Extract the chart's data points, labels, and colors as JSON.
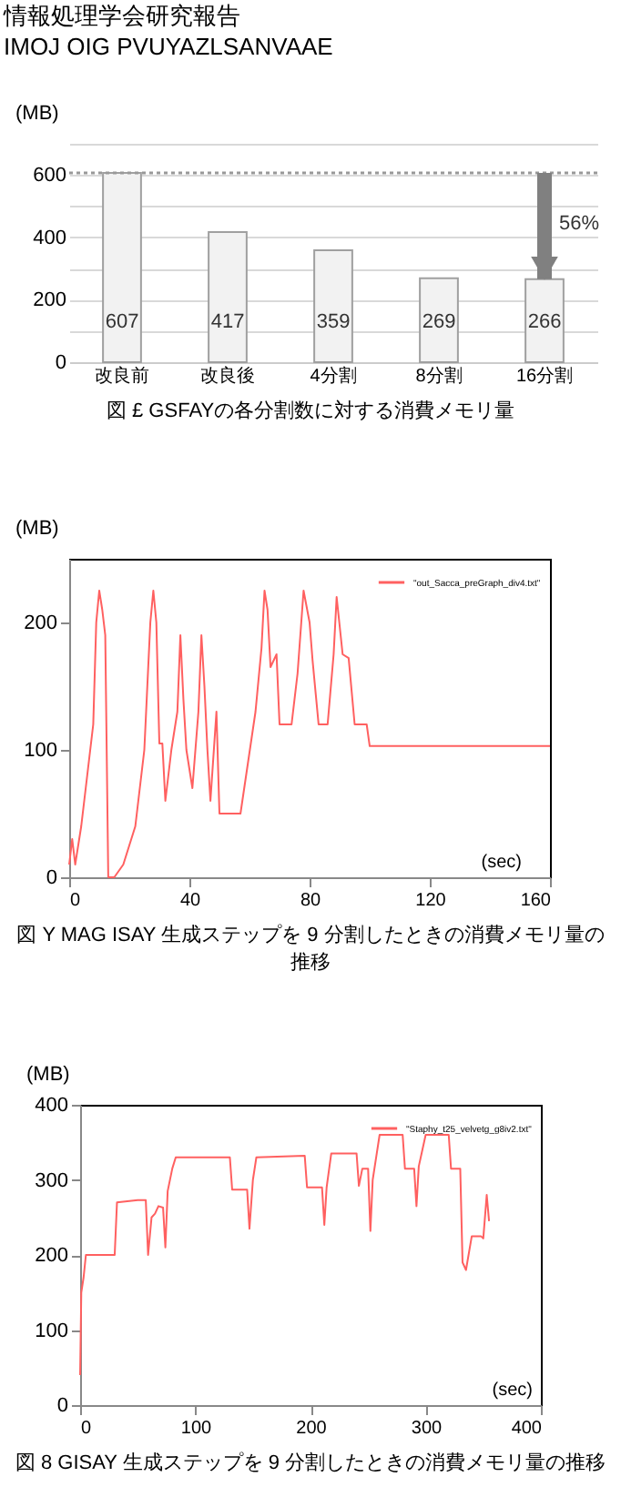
{
  "chart_data": [
    {
      "type": "bar",
      "title": "図 £ GSFAYの各分割数に対する消費メモリ量",
      "ylabel": "(MB)",
      "annotations": [
        "情報処理学会研究報告",
        "IMOJ OIG PVUYAZLSANVAAE",
        "56%"
      ],
      "categories": [
        "改良前",
        "改良後",
        "4分割",
        "8分割",
        "16分割"
      ],
      "values": [
        607,
        417,
        359,
        269,
        266
      ],
      "color": "#f2f2f2",
      "ylim": [
        0,
        700
      ],
      "yticks": [
        0,
        {
          "value": 100,
          "label": null
        },
        200,
        {
          "value": 300,
          "label": null
        },
        400,
        {
          "value": 500,
          "label": null
        },
        600,
        {
          "value": 700,
          "label": null
        }
      ],
      "grid": "y",
      "data_labels": true,
      "ref_lines": [
        {
          "axis": "y",
          "value": 607,
          "line_style": "dotted",
          "color": "#999999"
        }
      ]
    },
    {
      "type": "line",
      "title": "図 Y MAG ISAY 生成ステップを 9 分割したときの消費メモリ量の推移",
      "xlabel": "(sec)",
      "ylabel": "(MB)",
      "legend": "top right",
      "xlim": [
        0,
        160
      ],
      "xticks": [
        0,
        40,
        80,
        120,
        160
      ],
      "ylim": [
        0,
        250
      ],
      "yticks": [
        0,
        100,
        200
      ],
      "series": [
        {
          "name": "\"out_Sacca_preGraph_div4.txt\"",
          "color": "#ff6060",
          "x": [
            0,
            1,
            2,
            4,
            6,
            8,
            9,
            10,
            11,
            12,
            13,
            15,
            18,
            22,
            25,
            27,
            28,
            29,
            30,
            31,
            32,
            34,
            36,
            37,
            38,
            39,
            41,
            43,
            44,
            45,
            46,
            47,
            49,
            50,
            57,
            62,
            64,
            65,
            66,
            67,
            69,
            70,
            74,
            76,
            78,
            80,
            81,
            83,
            86,
            88,
            89,
            91,
            93,
            95,
            99,
            100,
            160
          ],
          "values": [
            10,
            30,
            10,
            40,
            80,
            120,
            200,
            225,
            210,
            190,
            0,
            0,
            10,
            40,
            100,
            200,
            225,
            200,
            105,
            105,
            60,
            100,
            130,
            190,
            140,
            100,
            70,
            130,
            190,
            150,
            100,
            60,
            130,
            50,
            50,
            130,
            180,
            225,
            210,
            165,
            175,
            120,
            120,
            160,
            225,
            200,
            170,
            120,
            120,
            175,
            220,
            175,
            172,
            120,
            120,
            103,
            103
          ]
        }
      ]
    },
    {
      "type": "line",
      "title": "図 8 GISAY 生成ステップを 9 分割したときの消費メモリ量の推移",
      "xlabel": "(sec)",
      "ylabel": "(MB)",
      "legend": "top right",
      "xlim": [
        0,
        400
      ],
      "xticks": [
        0,
        100,
        200,
        300,
        400
      ],
      "ylim": [
        0,
        400
      ],
      "yticks": [
        0,
        100,
        200,
        300,
        400
      ],
      "series": [
        {
          "name": "\"Staphy_t25_velvetg_g8iv2.txt\"",
          "color": "#ff6060",
          "x": [
            0,
            1,
            3,
            5,
            30,
            32,
            50,
            57,
            59,
            62,
            65,
            68,
            72,
            74,
            76,
            80,
            83,
            130,
            132,
            145,
            147,
            150,
            153,
            195,
            197,
            210,
            212,
            214,
            218,
            240,
            242,
            245,
            250,
            252,
            254,
            260,
            280,
            282,
            290,
            292,
            294,
            300,
            320,
            322,
            330,
            332,
            335,
            340,
            348,
            350,
            353,
            355
          ],
          "values": [
            40,
            150,
            170,
            200,
            200,
            270,
            273,
            273,
            200,
            250,
            255,
            265,
            263,
            210,
            285,
            315,
            330,
            330,
            287,
            287,
            235,
            300,
            330,
            332,
            290,
            290,
            240,
            290,
            335,
            335,
            292,
            315,
            315,
            232,
            300,
            360,
            360,
            315,
            315,
            265,
            318,
            360,
            360,
            315,
            315,
            190,
            180,
            225,
            225,
            222,
            280,
            245
          ]
        }
      ]
    }
  ]
}
